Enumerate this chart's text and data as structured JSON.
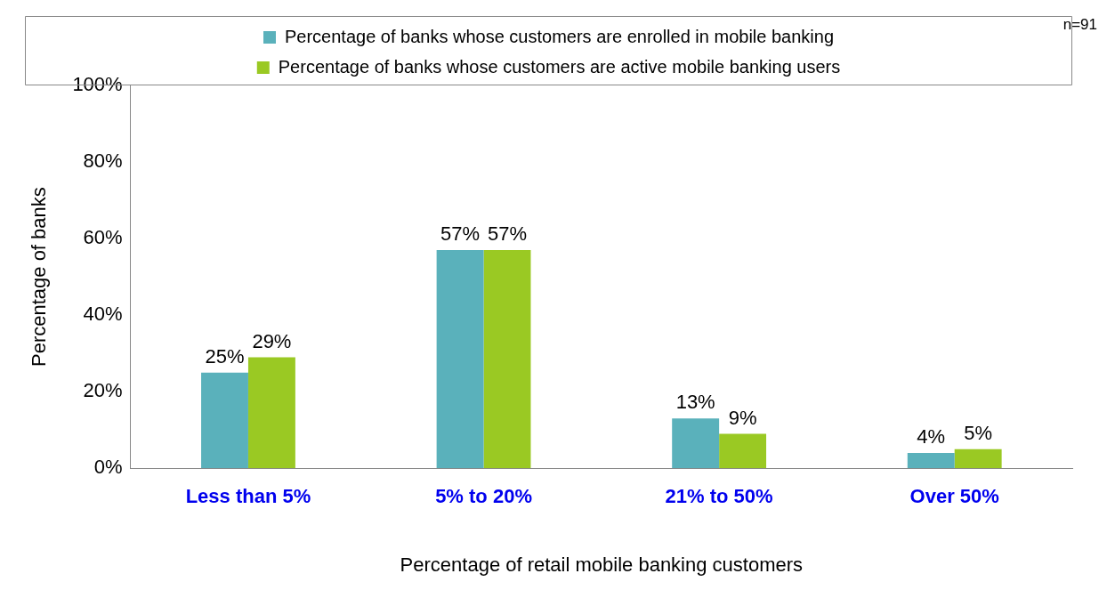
{
  "chart_data": {
    "type": "bar",
    "categories": [
      "Less than 5%",
      "5% to 20%",
      "21% to 50%",
      "Over 50%"
    ],
    "series": [
      {
        "name": "Percentage of banks whose customers are enrolled in mobile banking",
        "color": "#5ab1bb",
        "values": [
          25,
          57,
          13,
          4
        ],
        "value_labels": [
          "25%",
          "57%",
          "13%",
          "4%"
        ]
      },
      {
        "name": "Percentage of banks whose customers are active mobile banking users",
        "color": "#9ac923",
        "values": [
          29,
          57,
          9,
          5
        ],
        "value_labels": [
          "29%",
          "57%",
          "9%",
          "5%"
        ]
      }
    ],
    "ylim": [
      0,
      100
    ],
    "yticks": [
      {
        "value": 0,
        "label": "0%"
      },
      {
        "value": 20,
        "label": "20%"
      },
      {
        "value": 40,
        "label": "40%"
      },
      {
        "value": 60,
        "label": "60%"
      },
      {
        "value": 80,
        "label": "80%"
      },
      {
        "value": 100,
        "label": "100%"
      }
    ],
    "xlabel": "Percentage of retail mobile banking customers",
    "ylabel": "Percentage of banks",
    "annotations": [
      "n=91"
    ],
    "grid": false,
    "legend": "top"
  }
}
